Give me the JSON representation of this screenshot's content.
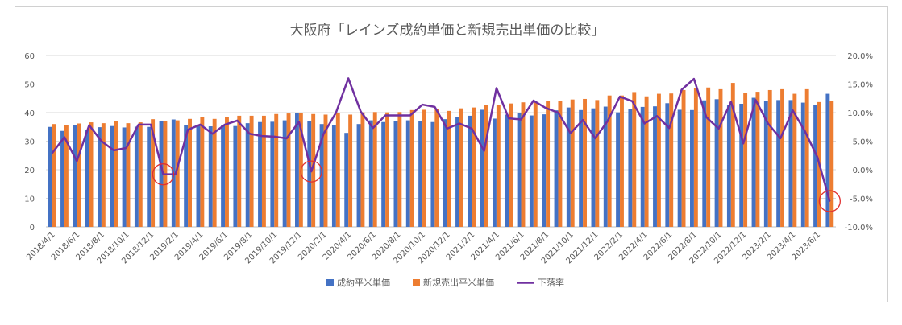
{
  "chart_data": {
    "type": "bar+line",
    "title": "大阪府「レインズ成約単価と新規売出単価の比較」",
    "categories": [
      "2018/4/1",
      "2018/5/1",
      "2018/6/1",
      "2018/7/1",
      "2018/8/1",
      "2018/9/1",
      "2018/10/1",
      "2018/11/1",
      "2018/12/1",
      "2019/1/1",
      "2019/2/1",
      "2019/3/1",
      "2019/4/1",
      "2019/5/1",
      "2019/6/1",
      "2019/7/1",
      "2019/8/1",
      "2019/9/1",
      "2019/10/1",
      "2019/11/1",
      "2019/12/1",
      "2020/1/1",
      "2020/2/1",
      "2020/3/1",
      "2020/4/1",
      "2020/5/1",
      "2020/6/1",
      "2020/7/1",
      "2020/8/1",
      "2020/9/1",
      "2020/10/1",
      "2020/11/1",
      "2020/12/1",
      "2021/1/1",
      "2021/2/1",
      "2021/3/1",
      "2021/4/1",
      "2021/5/1",
      "2021/6/1",
      "2021/7/1",
      "2021/8/1",
      "2021/9/1",
      "2021/10/1",
      "2021/11/1",
      "2021/12/1",
      "2022/1/1",
      "2022/2/1",
      "2022/3/1",
      "2022/4/1",
      "2022/5/1",
      "2022/6/1",
      "2022/7/1",
      "2022/8/1",
      "2022/9/1",
      "2022/10/1",
      "2022/11/1",
      "2022/12/1",
      "2023/1/1",
      "2023/2/1",
      "2023/3/1",
      "2023/4/1",
      "2023/5/1",
      "2023/6/1",
      "2023/7/1"
    ],
    "tick_labels": [
      "2018/4/1",
      "2018/6/1",
      "2018/8/1",
      "2018/10/1",
      "2018/12/1",
      "2019/2/1",
      "2019/4/1",
      "2019/6/1",
      "2019/8/1",
      "2019/10/1",
      "2019/12/1",
      "2020/2/1",
      "2020/4/1",
      "2020/6/1",
      "2020/8/1",
      "2020/10/1",
      "2020/12/1",
      "2021/2/1",
      "2021/4/1",
      "2021/6/1",
      "2021/8/1",
      "2021/10/1",
      "2021/12/1",
      "2022/2/1",
      "2022/4/1",
      "2022/6/1",
      "2022/8/1",
      "2022/10/1",
      "2022/12/1",
      "2023/2/1",
      "2023/4/1",
      "2023/6/1"
    ],
    "series": [
      {
        "name": "成約平米単価",
        "type": "bar",
        "axis": "left",
        "color": "#4472C4",
        "values": [
          35.0,
          33.6,
          35.7,
          33.8,
          34.9,
          35.3,
          34.8,
          35.1,
          35.0,
          37.1,
          37.6,
          35.6,
          35.4,
          35.2,
          35.6,
          35.3,
          36.3,
          36.7,
          36.8,
          37.3,
          40.0,
          37.0,
          36.0,
          35.5,
          32.9,
          36.0,
          37.3,
          36.7,
          37.0,
          37.3,
          36.9,
          36.7,
          37.7,
          38.4,
          38.9,
          41.0,
          37.9,
          39.3,
          39.9,
          39.0,
          39.4,
          40.8,
          41.8,
          40.9,
          41.5,
          42.1,
          40.1,
          41.2,
          42.0,
          42.2,
          43.3,
          41.0,
          40.9,
          44.3,
          44.7,
          42.7,
          43.1,
          45.2,
          44.0,
          44.4,
          44.4,
          43.5,
          42.8,
          46.6
        ]
      },
      {
        "name": "新規売出平米単価",
        "type": "bar",
        "axis": "left",
        "color": "#ED7D31",
        "values": [
          36.0,
          35.5,
          36.2,
          36.6,
          36.3,
          37.0,
          36.3,
          36.6,
          37.7,
          36.9,
          37.3,
          37.8,
          38.5,
          37.8,
          38.4,
          38.9,
          38.9,
          38.9,
          39.5,
          39.7,
          40.0,
          39.5,
          39.3,
          40.0,
          39.3,
          40.1,
          40.2,
          40.1,
          40.2,
          40.9,
          41.0,
          41.2,
          40.6,
          41.5,
          41.8,
          42.6,
          42.8,
          43.2,
          43.6,
          43.7,
          44.0,
          44.0,
          44.6,
          44.8,
          44.4,
          46.0,
          46.0,
          47.2,
          45.7,
          46.6,
          46.7,
          47.9,
          48.6,
          48.8,
          48.2,
          50.4,
          46.9,
          47.3,
          47.9,
          48.2,
          46.6,
          48.2,
          43.7,
          44.0
        ]
      },
      {
        "name": "下落率",
        "type": "line",
        "axis": "right",
        "color": "#7030A0",
        "values": [
          2.9,
          5.7,
          1.5,
          7.8,
          5.0,
          3.4,
          3.8,
          7.9,
          7.9,
          -0.8,
          -0.8,
          7.0,
          7.9,
          6.3,
          7.9,
          8.6,
          6.3,
          5.9,
          5.8,
          5.5,
          8.4,
          -0.3,
          6.3,
          10.0,
          16.0,
          10.2,
          7.3,
          9.5,
          9.5,
          9.5,
          11.4,
          11.0,
          7.2,
          8.1,
          7.2,
          3.3,
          14.3,
          9.0,
          8.8,
          12.1,
          10.8,
          10.0,
          6.4,
          8.7,
          5.5,
          8.5,
          12.8,
          12.0,
          8.1,
          9.4,
          7.3,
          14.0,
          15.9,
          9.2,
          7.2,
          11.9,
          4.6,
          12.2,
          8.1,
          5.5,
          10.4,
          6.7,
          2.2,
          -5.5
        ]
      }
    ],
    "ylim_left": [
      0,
      60
    ],
    "yticks_left": [
      "0",
      "10",
      "20",
      "30",
      "40",
      "50",
      "60"
    ],
    "ylim_right": [
      -10,
      20
    ],
    "yticks_right": [
      "-10.0%",
      "-5.0%",
      "0.0%",
      "5.0%",
      "10.0%",
      "15.0%",
      "20.0%"
    ],
    "legend": [
      {
        "label": "成約平米単価",
        "color": "#4472C4",
        "kind": "bar"
      },
      {
        "label": "新規売出平米単価",
        "color": "#ED7D31",
        "kind": "bar"
      },
      {
        "label": "下落率",
        "color": "#7030A0",
        "kind": "line"
      }
    ],
    "legend_position": "bottom",
    "grid": true,
    "highlight_circles": [
      {
        "category": "2019/1/1",
        "series": "下落率",
        "color": "#E03030"
      },
      {
        "category": "2020/1/1",
        "series": "下落率",
        "color": "#E03030"
      },
      {
        "category": "2023/7/1",
        "series": "下落率",
        "color": "#E03030"
      }
    ]
  }
}
